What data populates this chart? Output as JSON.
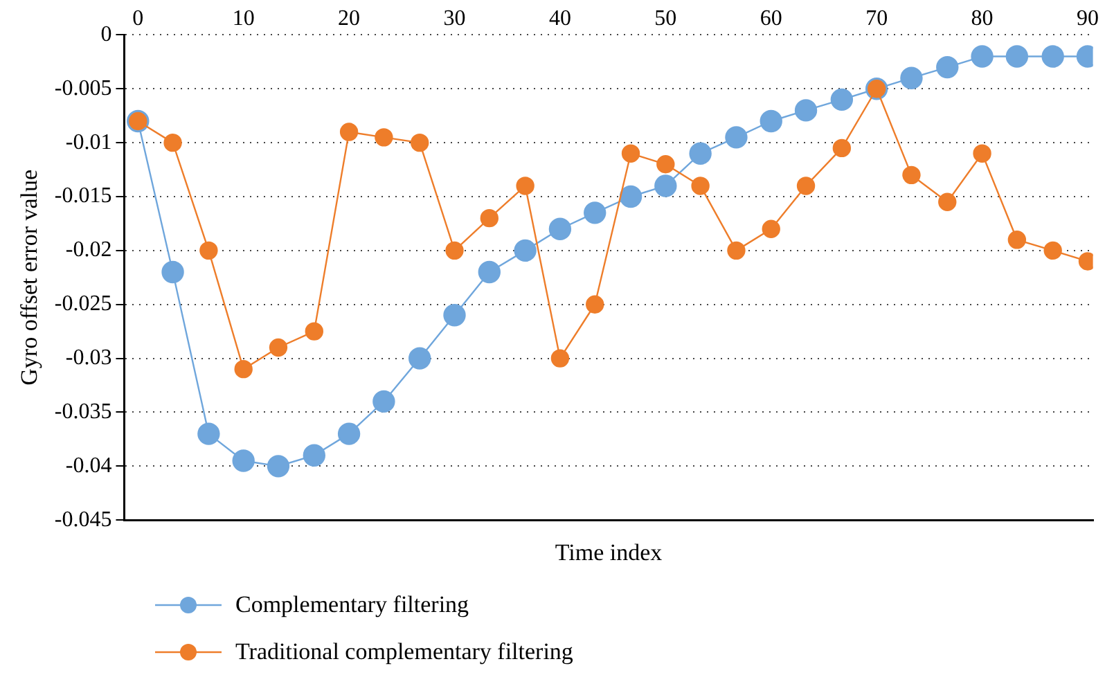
{
  "chart_data": {
    "type": "line",
    "xlabel": "Time index",
    "ylabel": "Gyro offset error value",
    "x": [
      0,
      3.3,
      6.7,
      10,
      13.3,
      16.7,
      20,
      23.3,
      26.7,
      30,
      33.3,
      36.7,
      40,
      43.3,
      46.7,
      50,
      53.3,
      56.7,
      60,
      63.3,
      66.7,
      70,
      73.3,
      76.7,
      80,
      83.3,
      86.7,
      90
    ],
    "xlim": [
      -1.3,
      90.5
    ],
    "xticks": [
      0,
      10,
      20,
      30,
      40,
      50,
      60,
      70,
      80,
      90
    ],
    "ylim": [
      -0.045,
      0
    ],
    "yticks": [
      -0.045,
      -0.04,
      -0.035,
      -0.03,
      -0.025,
      -0.02,
      -0.015,
      -0.01,
      -0.005,
      0
    ],
    "series": [
      {
        "name": "Complementary filtering",
        "color": "#6fa6dc",
        "values": [
          -0.008,
          -0.022,
          -0.037,
          -0.0395,
          -0.04,
          -0.039,
          -0.037,
          -0.034,
          -0.03,
          -0.026,
          -0.022,
          -0.02,
          -0.018,
          -0.0165,
          -0.015,
          -0.014,
          -0.011,
          -0.0095,
          -0.008,
          -0.007,
          -0.006,
          -0.005,
          -0.004,
          -0.003,
          -0.002,
          -0.002,
          -0.002,
          -0.002
        ]
      },
      {
        "name": "Traditional complementary filtering",
        "color": "#ee7d2a",
        "values": [
          -0.008,
          -0.01,
          -0.02,
          -0.031,
          -0.029,
          -0.0275,
          -0.009,
          -0.0095,
          -0.01,
          -0.02,
          -0.017,
          -0.014,
          -0.03,
          -0.025,
          -0.011,
          -0.012,
          -0.014,
          -0.02,
          -0.018,
          -0.014,
          -0.0105,
          -0.005,
          -0.013,
          -0.0155,
          -0.011,
          -0.019,
          -0.02,
          -0.021
        ]
      }
    ],
    "grid": "y",
    "legend": "bottom",
    "marker": "circle",
    "line_style": "solid"
  }
}
